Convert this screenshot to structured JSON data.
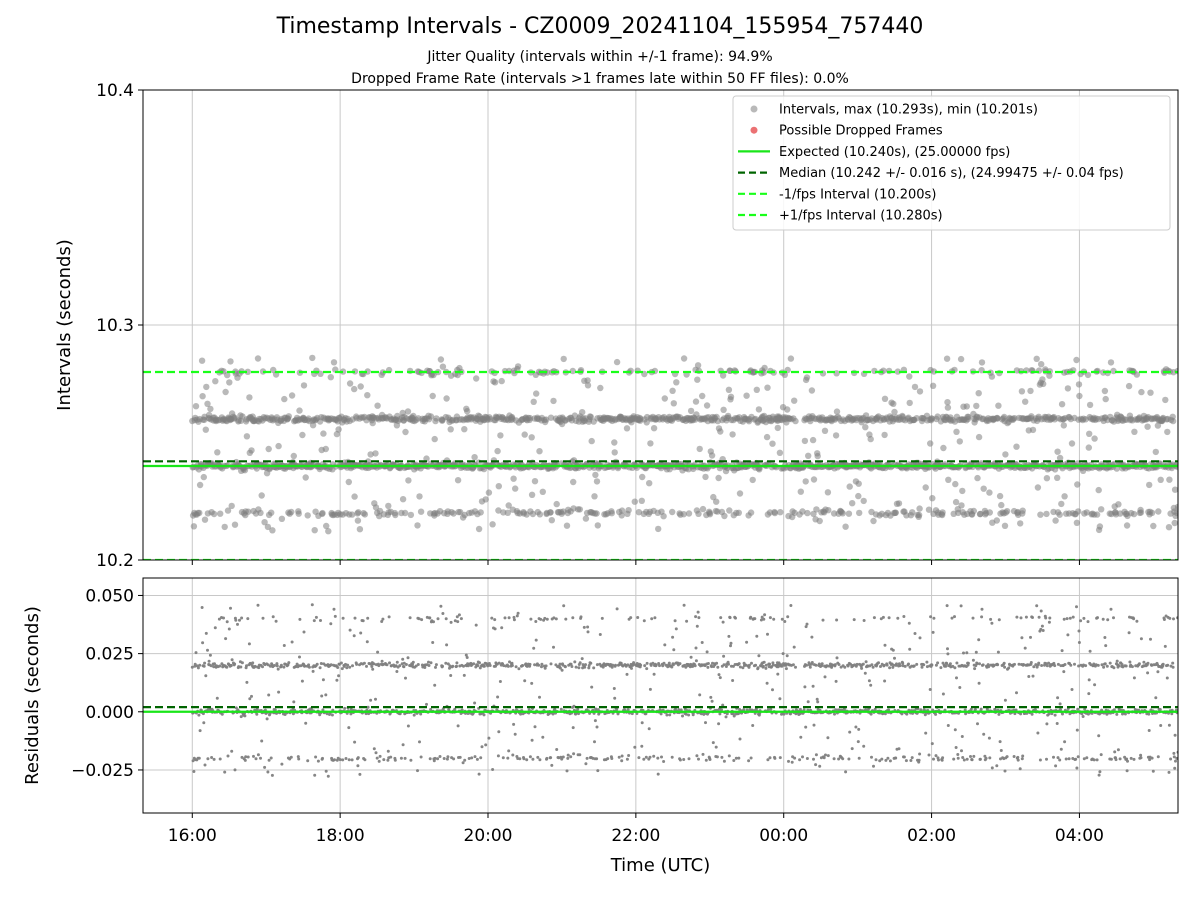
{
  "title": "Timestamp Intervals - CZ0009_20241104_155954_757440",
  "subtitle_1": "Jitter Quality (intervals within +/-1 frame): 94.9%",
  "subtitle_2": "Dropped Frame Rate (intervals >1 frames late within 50 FF files): 0.0%",
  "colors": {
    "points": "#808080",
    "dropped": "#e8585a",
    "expected": "#19e619",
    "median": "#006400",
    "band": "#19ff19",
    "grid": "#c8c8c8"
  },
  "chart_data": [
    {
      "type": "scatter",
      "ylabel": "Intervals (seconds)",
      "ylim": [
        10.2,
        10.4
      ],
      "yticks": [
        "10.2",
        "10.3",
        "10.4"
      ],
      "grid": true,
      "legend_placement": "top-right",
      "x_range_utc": [
        "15:20",
        "05:20"
      ],
      "x_span_hours": 14,
      "data_start_utc": "16:00",
      "interval_stats": {
        "max": 10.293,
        "min": 10.201,
        "median": 10.242,
        "median_err": 0.016
      },
      "reference_lines": [
        {
          "name": "Expected (10.240s), (25.00000 fps)",
          "y": 10.24,
          "style": "solid",
          "color": "#19e619"
        },
        {
          "name": "Median (10.242 +/- 0.016 s), (24.99475 +/- 0.04 fps)",
          "y": 10.242,
          "style": "dashed",
          "color": "#006400"
        },
        {
          "name": "-1/fps Interval (10.200s)",
          "y": 10.2,
          "style": "dashed",
          "color": "#19ff19"
        },
        {
          "name": "+1/fps Interval (10.280s)",
          "y": 10.28,
          "style": "dashed",
          "color": "#19ff19"
        }
      ],
      "series": [
        {
          "name": "Intervals, max (10.293s), min (10.201s)",
          "levels": [
            10.22,
            10.24,
            10.26,
            10.28
          ],
          "level_weights": [
            0.12,
            0.44,
            0.36,
            0.08
          ]
        },
        {
          "name": "Possible Dropped Frames",
          "values": []
        }
      ]
    },
    {
      "type": "scatter",
      "xlabel": "Time (UTC)",
      "ylabel": "Residuals (seconds)",
      "ylim": [
        -0.0435,
        0.0575
      ],
      "yticks": [
        "−0.025",
        "0.000",
        "0.025",
        "0.050"
      ],
      "xticks": [
        "16:00",
        "18:00",
        "20:00",
        "22:00",
        "00:00",
        "02:00",
        "04:00"
      ],
      "grid": true,
      "reference_lines": [
        {
          "y": 0.0,
          "style": "solid",
          "color": "#19e619"
        },
        {
          "y": 0.002,
          "style": "dashed",
          "color": "#006400"
        }
      ],
      "series": [
        {
          "name": "Residuals",
          "levels": [
            -0.02,
            0.0,
            0.02,
            0.04
          ],
          "level_weights": [
            0.12,
            0.44,
            0.36,
            0.08
          ]
        }
      ]
    }
  ]
}
